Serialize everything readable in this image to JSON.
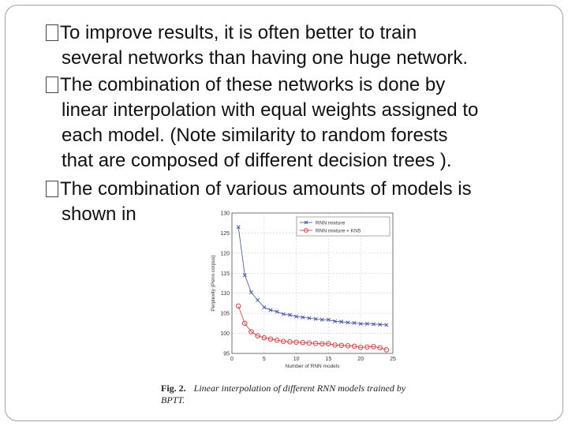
{
  "slide": {
    "bullets": [
      {
        "lines": [
          "To improve results, it is often better to train",
          "several networks than having one huge network."
        ]
      },
      {
        "lines": [
          "The combination of these networks is done by",
          "linear interpolation with equal weights assigned to",
          "each model. (Note similarity to random forests",
          "that are composed of different decision trees )."
        ]
      },
      {
        "lines": [
          "The combination of various amounts of models is",
          "shown in"
        ]
      }
    ]
  },
  "figure": {
    "caption_label": "Fig. 2.",
    "caption_text_line1": "Linear interpolation of different RNN models trained by",
    "caption_text_line2": "BPTT."
  },
  "chart_data": {
    "type": "line",
    "xlabel": "Number of RNN models",
    "ylabel": "Perplexity (Penn corpus)",
    "xlim": [
      0,
      25
    ],
    "ylim": [
      95,
      130
    ],
    "x_ticks": [
      "0",
      "5",
      "10",
      "15",
      "20",
      "25"
    ],
    "y_ticks": [
      "95",
      "100",
      "105",
      "110",
      "115",
      "120",
      "125",
      "130"
    ],
    "grid": true,
    "legend_position": "top-right",
    "series": [
      {
        "name": "RNN mixture",
        "color": "#3b4fa8",
        "marker": "x",
        "x": [
          1,
          2,
          3,
          4,
          5,
          6,
          7,
          8,
          9,
          10,
          11,
          12,
          13,
          14,
          15,
          16,
          17,
          18,
          19,
          20,
          21,
          22,
          23,
          24
        ],
        "values": [
          126.5,
          114.5,
          110.2,
          108.3,
          106.5,
          105.8,
          105.4,
          104.8,
          104.6,
          104.2,
          104.0,
          103.8,
          103.6,
          103.4,
          103.4,
          103.0,
          102.9,
          102.7,
          102.6,
          102.4,
          102.4,
          102.3,
          102.2,
          102.1
        ]
      },
      {
        "name": "RNN mixture + KN5",
        "color": "#d93030",
        "marker": "o",
        "x": [
          1,
          2,
          3,
          4,
          5,
          6,
          7,
          8,
          9,
          10,
          11,
          12,
          13,
          14,
          15,
          16,
          17,
          18,
          19,
          20,
          21,
          22,
          23,
          24
        ],
        "values": [
          106.8,
          102.5,
          100.4,
          99.4,
          98.9,
          98.6,
          98.3,
          98.0,
          97.9,
          97.8,
          97.7,
          97.6,
          97.5,
          97.4,
          97.4,
          97.1,
          97.0,
          96.9,
          96.8,
          96.5,
          96.6,
          96.7,
          96.4,
          95.9
        ]
      }
    ]
  }
}
